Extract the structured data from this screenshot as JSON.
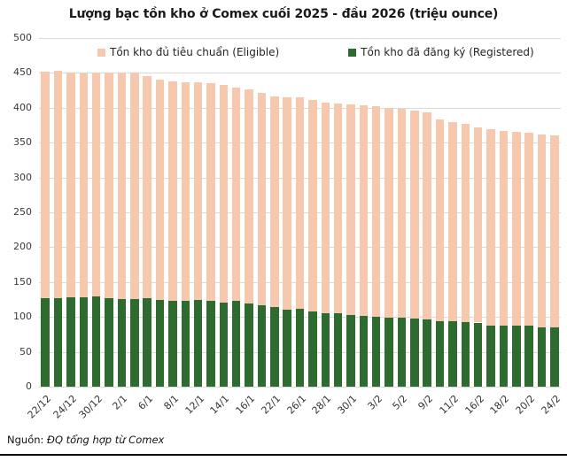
{
  "title": "Lượng bạc tồn kho ở Comex cuối 2025 - đầu 2026 (triệu ounce)",
  "legend": [
    {
      "label": "Tồn kho đủ tiêu chuẩn (Eligible)",
      "color": "#f6c9ae"
    },
    {
      "label": "Tồn kho đã đăng ký (Registered)",
      "color": "#2e6b31"
    }
  ],
  "source": {
    "prefix": "Nguồn:",
    "text": "ĐQ tổng hợp từ Comex"
  },
  "colors": {
    "eligible": "#f6c9ae",
    "registered": "#2e6b31",
    "gridline": "#d9d9d9",
    "text": "#262626"
  },
  "chart_data": {
    "type": "bar",
    "stacked": true,
    "title": "Lượng bạc tồn kho ở Comex cuối 2025 - đầu 2026 (triệu ounce)",
    "xlabel": "",
    "ylabel": "",
    "ylim": [
      0,
      500
    ],
    "ytick_step": 50,
    "y_ticks": [
      0,
      50,
      100,
      150,
      200,
      250,
      300,
      350,
      400,
      450,
      500
    ],
    "grid": true,
    "legend_position": "top",
    "categories": [
      "22/12",
      "24/12",
      "30/12",
      "2/1",
      "6/1",
      "8/1",
      "12/1",
      "14/1",
      "16/1",
      "22/1",
      "26/1",
      "28/1",
      "30/1",
      "3/2",
      "5/2",
      "9/2",
      "11/2",
      "16/2",
      "18/2",
      "20/2",
      "24/2"
    ],
    "label_every": 2,
    "n_bars": 41,
    "series": [
      {
        "name": "Tồn kho đã đăng ký (Registered)",
        "color": "#2e6b31",
        "values": [
          127,
          127,
          128,
          128,
          129,
          127,
          126,
          126,
          127,
          125,
          123,
          123,
          124,
          123,
          121,
          123,
          119,
          117,
          114,
          111,
          112,
          108,
          106,
          105,
          103,
          102,
          100,
          99,
          99,
          98,
          97,
          94,
          94,
          93,
          92,
          88,
          88,
          87,
          87,
          85,
          85
        ]
      },
      {
        "name": "Tồn kho đủ tiêu chuẩn (Eligible)",
        "color": "#f6c9ae",
        "values": [
          325,
          326,
          323,
          321,
          321,
          324,
          325,
          324,
          319,
          316,
          315,
          314,
          312,
          312,
          312,
          306,
          307,
          305,
          302,
          304,
          303,
          303,
          302,
          301,
          302,
          302,
          302,
          301,
          299,
          298,
          297,
          289,
          286,
          284,
          280,
          281,
          279,
          278,
          277,
          277,
          275
        ]
      }
    ],
    "totals": [
      452,
      453,
      451,
      449,
      450,
      451,
      451,
      450,
      446,
      441,
      438,
      437,
      436,
      435,
      433,
      429,
      426,
      422,
      416,
      415,
      415,
      411,
      408,
      406,
      405,
      404,
      402,
      400,
      398,
      396,
      394,
      383,
      380,
      377,
      372,
      369,
      367,
      365,
      364,
      362,
      360
    ]
  }
}
